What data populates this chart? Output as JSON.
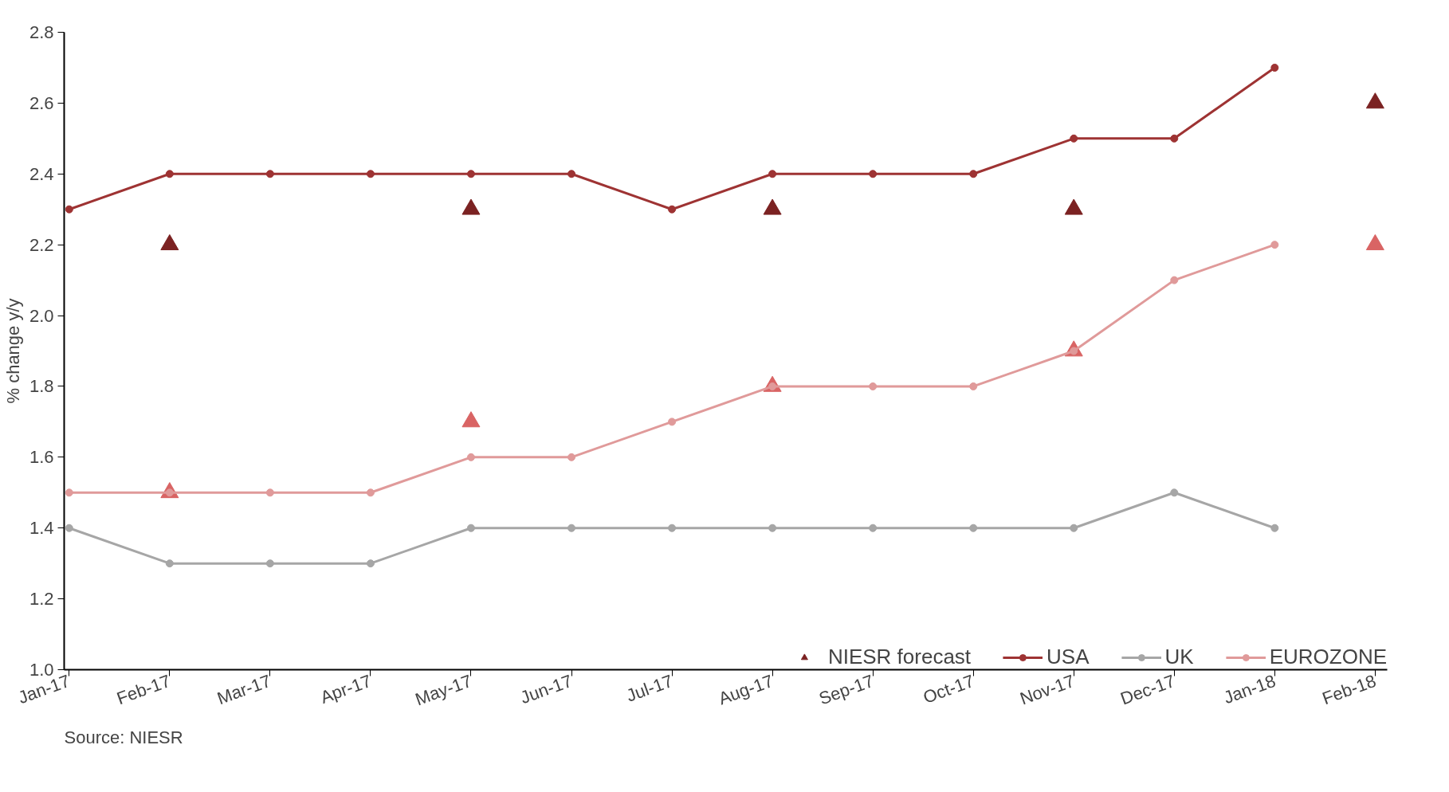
{
  "chart_data": {
    "type": "line",
    "ylabel": "% change y/y",
    "categories": [
      "Jan-17",
      "Feb-17",
      "Mar-17",
      "Apr-17",
      "May-17",
      "Jun-17",
      "Jul-17",
      "Aug-17",
      "Sep-17",
      "Oct-17",
      "Nov-17",
      "Dec-17",
      "Jan-18",
      "Feb-18"
    ],
    "ylim": [
      1.0,
      2.8
    ],
    "yticks": [
      {
        "value": 1.0,
        "label": "1.0"
      },
      {
        "value": 1.2,
        "label": "1.2"
      },
      {
        "value": 1.4,
        "label": "1.4"
      },
      {
        "value": 1.6,
        "label": "1.6"
      },
      {
        "value": 1.8,
        "label": "1.8"
      },
      {
        "value": 2.0,
        "label": "2.0"
      },
      {
        "value": 2.2,
        "label": "2.2"
      },
      {
        "value": 2.4,
        "label": "2.4"
      },
      {
        "value": 2.6,
        "label": "2.6"
      },
      {
        "value": 2.8,
        "label": "2.8"
      }
    ],
    "marker": "circle",
    "grid": false,
    "legend": "bottom",
    "series": [
      {
        "name": "NIESR forecast",
        "type": "scatter",
        "marker": "triangle",
        "color": "#7b2222",
        "values": [
          null,
          2.2,
          null,
          null,
          2.3,
          null,
          null,
          2.3,
          null,
          null,
          2.3,
          null,
          null,
          2.6
        ]
      },
      {
        "name": "USA",
        "color": "#9e3333",
        "values": [
          2.3,
          2.4,
          2.4,
          2.4,
          2.4,
          2.4,
          2.3,
          2.4,
          2.4,
          2.4,
          2.5,
          2.5,
          2.7,
          null
        ]
      },
      {
        "name": "UK",
        "color": "#a6a6a6",
        "values": [
          1.4,
          1.3,
          1.3,
          1.3,
          1.4,
          1.4,
          1.4,
          1.4,
          1.4,
          1.4,
          1.4,
          1.5,
          1.4,
          null
        ]
      },
      {
        "name": "EUROZONE",
        "color": "#e09a9a",
        "values": [
          1.5,
          1.5,
          1.5,
          1.5,
          1.6,
          1.6,
          1.7,
          1.8,
          1.8,
          1.8,
          1.9,
          2.1,
          2.2,
          null
        ]
      },
      {
        "type": "scatter",
        "marker": "triangle",
        "color": "#d96464",
        "values": [
          null,
          1.5,
          null,
          null,
          1.7,
          null,
          null,
          1.8,
          null,
          null,
          1.9,
          null,
          null,
          2.2
        ]
      }
    ],
    "annotations": [
      "Source: NIESR"
    ]
  }
}
